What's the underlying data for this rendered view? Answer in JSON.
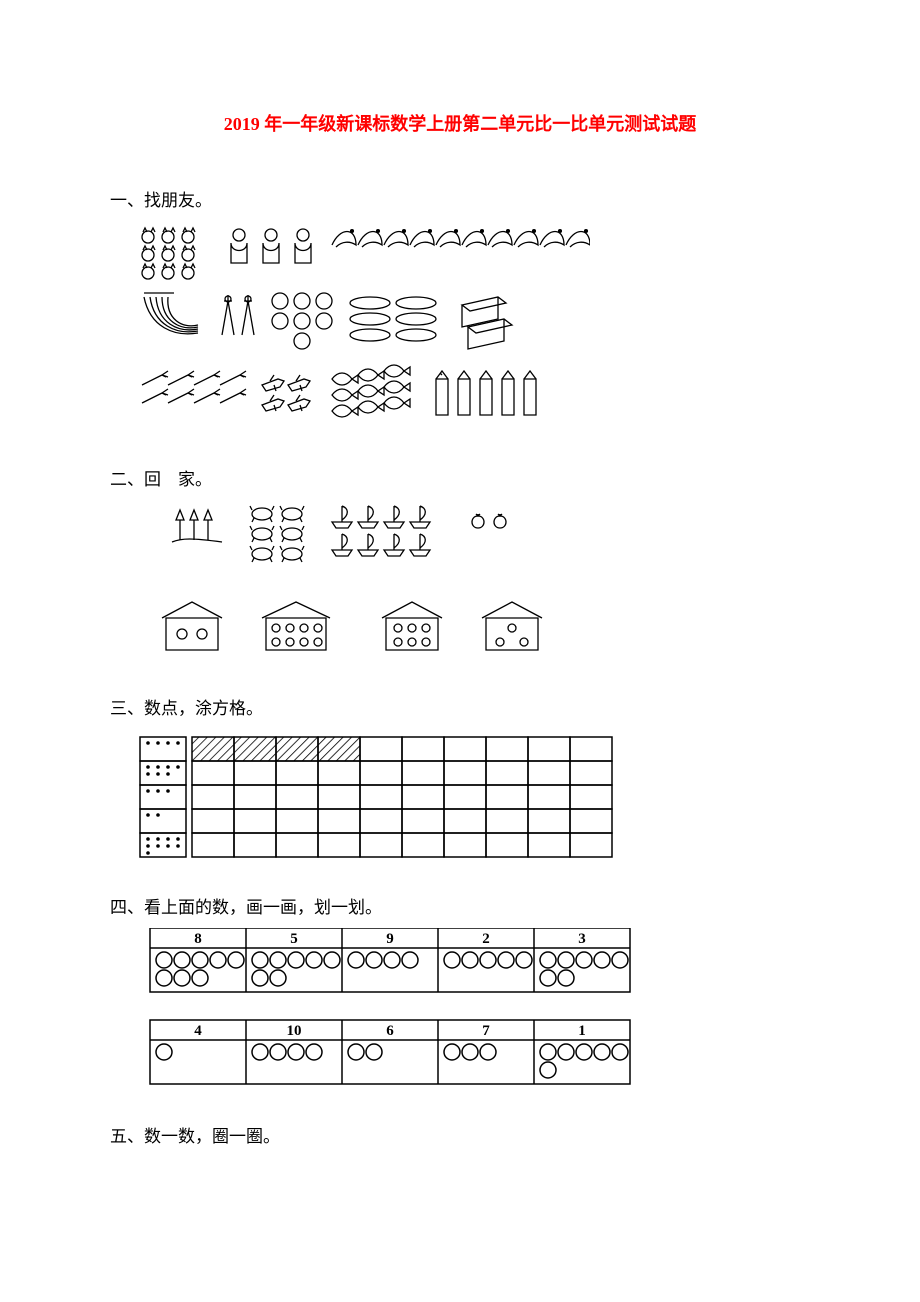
{
  "title": "2019 年一年级新课标数学上册第二单元比一比单元测试试题",
  "sections": {
    "s1": "一、找朋友。",
    "s2": "二、回　家。",
    "s3": "三、数点，涂方格。",
    "s4": "四、看上面的数，画一画，划一划。",
    "s5": "五、数一数，圈一圈。"
  },
  "colors": {
    "title": "#ff0000",
    "text": "#000000",
    "stroke": "#000000",
    "bg": "#ffffff",
    "hatch": "#000000"
  },
  "q3_grid": {
    "rows": 5,
    "cols": 10,
    "hatched_cells_row0": 4,
    "dot_counts": [
      4,
      7,
      3,
      2,
      9
    ]
  },
  "q4": {
    "table1": {
      "headers": [
        "8",
        "5",
        "9",
        "2",
        "3"
      ],
      "preset_circles": [
        8,
        7,
        4,
        5,
        7
      ],
      "dotted_in_col": [
        0,
        0,
        0,
        0,
        0
      ]
    },
    "table2": {
      "headers": [
        "4",
        "10",
        "6",
        "7",
        "1"
      ],
      "preset_circles": [
        1,
        4,
        2,
        3,
        6
      ]
    }
  }
}
